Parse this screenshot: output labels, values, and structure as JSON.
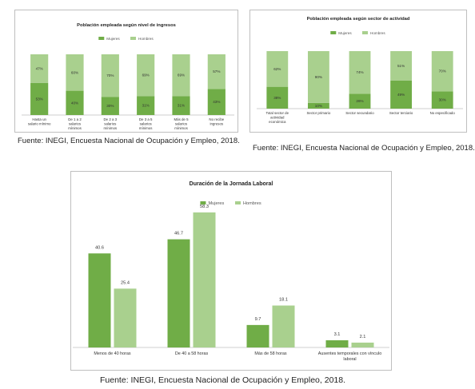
{
  "colors": {
    "mujeres": "#70ad47",
    "hombres": "#a9d08e",
    "axis": "#bfbfbf"
  },
  "legend": {
    "mujeres": "Mujeres",
    "hombres": "Hombres"
  },
  "sources": [
    "Fuente: INEGI, Encuesta Nacional de Ocupación y Empleo, 2018.",
    "Fuente: INEGI, Encuesta Nacional de Ocupación y Empleo, 2018.",
    "Fuente: INEGI, Encuesta Nacional de Ocupación y Empleo, 2018."
  ],
  "chart_data": [
    {
      "type": "bar",
      "stacked": true,
      "percent": true,
      "title": "Población empleada según nivel de ingresos",
      "categories": [
        "Hasta un salario mínimo",
        "De 1 a 2 salarios mínimos",
        "De 2 a 3 salarios mínimos",
        "De 3 a 5 salarios mínimos",
        "Más de 5 salarios mínimos",
        "No recibe ingresos"
      ],
      "series": [
        {
          "name": "Mujeres",
          "values": [
            53,
            40,
            30,
            31,
            31,
            43
          ]
        },
        {
          "name": "Hombres",
          "values": [
            47,
            60,
            70,
            69,
            69,
            57
          ]
        }
      ],
      "value_labels": {
        "Mujeres": [
          "53%",
          "40%",
          "30%",
          "31%",
          "31%",
          "43%"
        ],
        "Hombres": [
          "47%",
          "60%",
          "70%",
          "69%",
          "69%",
          "57%"
        ]
      },
      "ylim": [
        0,
        100
      ],
      "legend": "top"
    },
    {
      "type": "bar",
      "stacked": true,
      "percent": true,
      "title": "Población empleada según sector de actividad",
      "categories": [
        "Total sector de actividad económica",
        "Sector primario",
        "Sector secundario",
        "Sector terciario",
        "No especificado"
      ],
      "series": [
        {
          "name": "Mujeres",
          "values": [
            38,
            10,
            26,
            49,
            30
          ]
        },
        {
          "name": "Hombres",
          "values": [
            62,
            90,
            74,
            51,
            70
          ]
        }
      ],
      "value_labels": {
        "Mujeres": [
          "38%",
          "10%",
          "26%",
          "49%",
          "30%"
        ],
        "Hombres": [
          "62%",
          "90%",
          "74%",
          "51%",
          "70%"
        ]
      },
      "ylim": [
        0,
        100
      ],
      "legend": "top"
    },
    {
      "type": "bar",
      "title": "Duración de la Jornada Laboral",
      "categories": [
        "Menos de 40 horas",
        "De 40 a 58 horas",
        "Más de 58 horas",
        "Ausentes temporales con vínculo laboral"
      ],
      "series": [
        {
          "name": "Mujeres",
          "values": [
            40.6,
            46.7,
            9.7,
            3.1
          ]
        },
        {
          "name": "Hombres",
          "values": [
            25.4,
            58.3,
            18.1,
            2.1
          ]
        }
      ],
      "value_labels": {
        "Mujeres": [
          "40.6",
          "46.7",
          "9.7",
          "3.1"
        ],
        "Hombres": [
          "25.4",
          "58.3",
          "18.1",
          "2.1"
        ]
      },
      "ylim": [
        0,
        60
      ],
      "legend": "top"
    }
  ]
}
